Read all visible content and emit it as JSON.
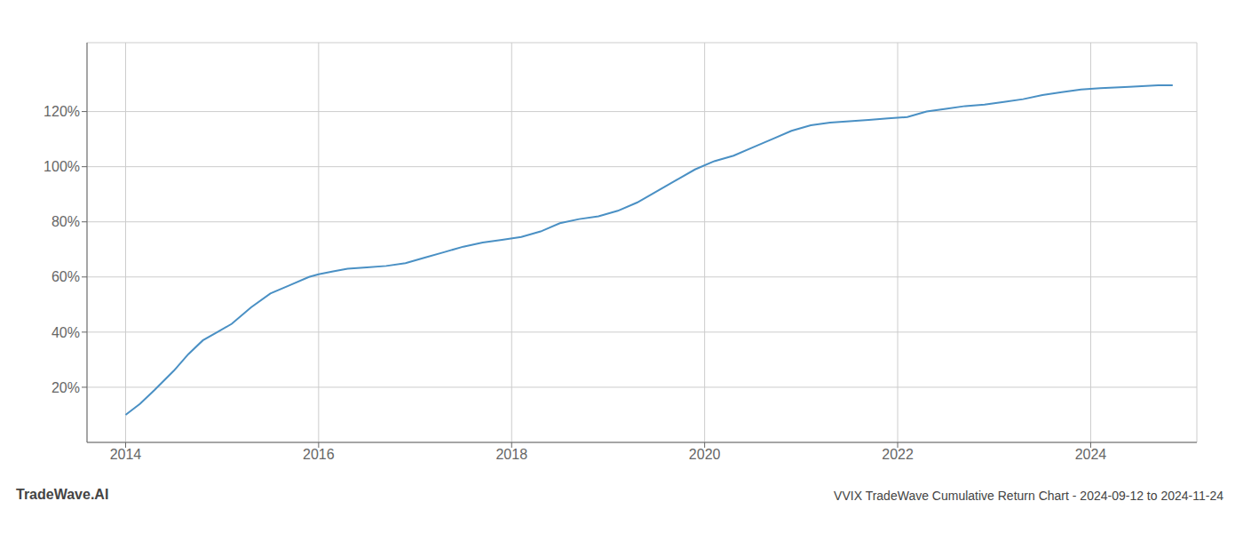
{
  "chart_data": {
    "type": "line",
    "title": "VVIX TradeWave Cumulative Return Chart - 2024-09-12 to 2024-11-24",
    "annotations": [
      "TradeWave.AI"
    ],
    "color": "#4a90c4",
    "grid": true,
    "xlim": [
      2013.6,
      2025.1
    ],
    "ylim": [
      0,
      145
    ],
    "xticks": [
      2014,
      2016,
      2018,
      2020,
      2022,
      2024
    ],
    "yticks": [
      {
        "value": 20,
        "label": "20%"
      },
      {
        "value": 40,
        "label": "40%"
      },
      {
        "value": 60,
        "label": "60%"
      },
      {
        "value": 80,
        "label": "80%"
      },
      {
        "value": 100,
        "label": "100%"
      },
      {
        "value": 120,
        "label": "120%"
      }
    ],
    "x": [
      2014.0,
      2014.15,
      2014.3,
      2014.5,
      2014.65,
      2014.8,
      2014.95,
      2015.1,
      2015.3,
      2015.5,
      2015.7,
      2015.9,
      2016.0,
      2016.15,
      2016.3,
      2016.5,
      2016.7,
      2016.9,
      2017.1,
      2017.3,
      2017.5,
      2017.7,
      2017.9,
      2018.1,
      2018.3,
      2018.5,
      2018.7,
      2018.9,
      2019.1,
      2019.3,
      2019.5,
      2019.7,
      2019.9,
      2020.1,
      2020.3,
      2020.5,
      2020.7,
      2020.9,
      2021.1,
      2021.3,
      2021.5,
      2021.7,
      2021.9,
      2022.1,
      2022.3,
      2022.5,
      2022.7,
      2022.9,
      2023.1,
      2023.3,
      2023.5,
      2023.7,
      2023.9,
      2024.1,
      2024.4,
      2024.7,
      2024.85
    ],
    "values": [
      10,
      14,
      19,
      26,
      32,
      37,
      40,
      43,
      49,
      54,
      57,
      60,
      61,
      62,
      63,
      63.5,
      64,
      65,
      67,
      69,
      71,
      72.5,
      73.5,
      74.5,
      76.5,
      79.5,
      81,
      82,
      84,
      87,
      91,
      95,
      99,
      102,
      104,
      107,
      110,
      113,
      115,
      116,
      116.5,
      117,
      117.5,
      118,
      120,
      121,
      122,
      122.5,
      123.5,
      124.5,
      126,
      127,
      128,
      128.5,
      129,
      129.5,
      129.5
    ]
  }
}
